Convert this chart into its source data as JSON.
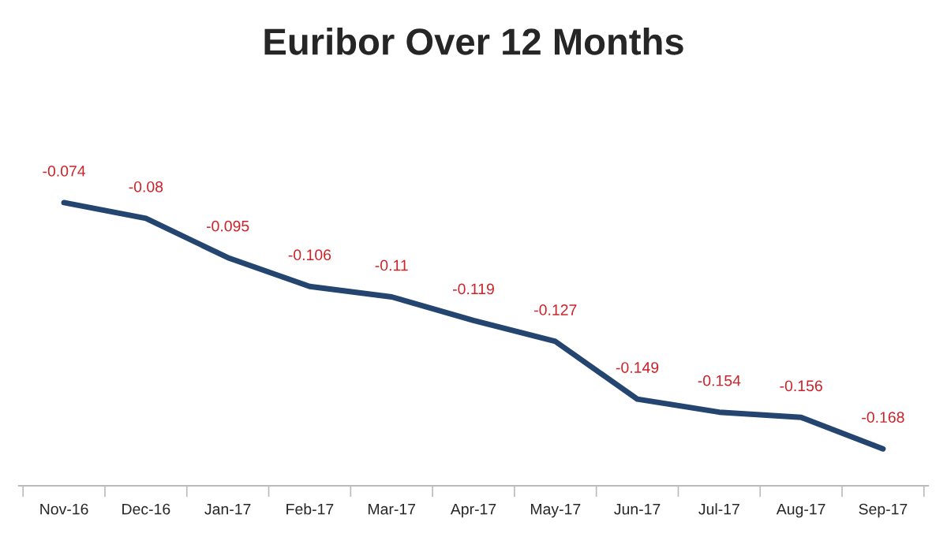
{
  "chart_data": {
    "type": "line",
    "title": "Euribor Over 12 Months",
    "categories": [
      "Nov-16",
      "Dec-16",
      "Jan-17",
      "Feb-17",
      "Mar-17",
      "Apr-17",
      "May-17",
      "Jun-17",
      "Jul-17",
      "Aug-17",
      "Sep-17"
    ],
    "series": [
      {
        "color": "#24456f",
        "values": [
          -0.074,
          -0.08,
          -0.095,
          -0.106,
          -0.11,
          -0.119,
          -0.127,
          -0.149,
          -0.154,
          -0.156,
          -0.168
        ]
      }
    ],
    "data_labels": true,
    "grid": false,
    "legend": false,
    "marker": "none",
    "line_style": "solid"
  }
}
